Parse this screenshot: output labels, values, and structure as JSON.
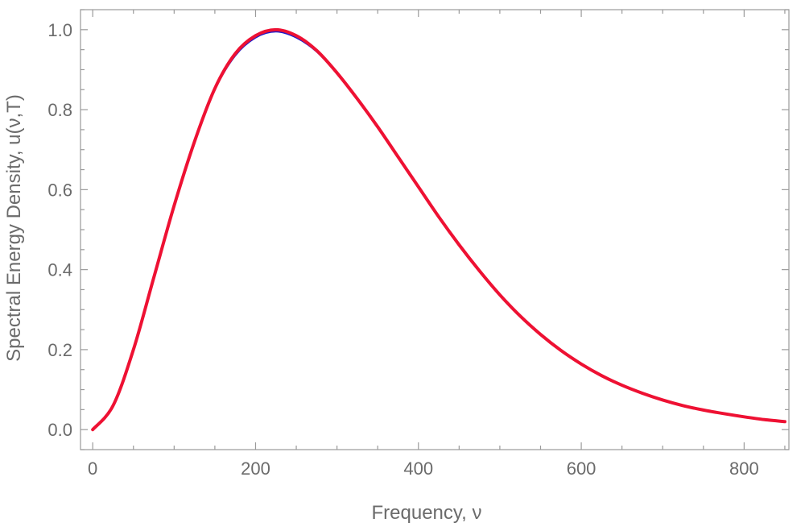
{
  "chart_data": {
    "type": "line",
    "xlabel": "Frequency, ν",
    "ylabel": "Spectral Energy Density, u(ν,T)",
    "xlim": [
      -15,
      855
    ],
    "ylim": [
      -0.05,
      1.05
    ],
    "x_ticks": [
      0,
      200,
      400,
      600,
      800
    ],
    "x_tick_labels": [
      "0",
      "200",
      "400",
      "600",
      "800"
    ],
    "x_minor_step": 50,
    "y_ticks": [
      0.0,
      0.2,
      0.4,
      0.6,
      0.8,
      1.0
    ],
    "y_tick_labels": [
      "0.0",
      "0.2",
      "0.4",
      "0.6",
      "0.8",
      "1.0"
    ],
    "y_minor_step": 0.05,
    "grid": false,
    "x": [
      0,
      25,
      50,
      75,
      100,
      125,
      150,
      175,
      200,
      225,
      250,
      275,
      300,
      325,
      350,
      375,
      400,
      425,
      450,
      475,
      500,
      525,
      550,
      575,
      600,
      625,
      650,
      675,
      700,
      725,
      750,
      775,
      800,
      825,
      850
    ],
    "series": [
      {
        "color": "#1a1acc",
        "width": 2,
        "values": [
          0.0,
          0.06,
          0.2,
          0.38,
          0.56,
          0.72,
          0.85,
          0.935,
          0.98,
          0.995,
          0.98,
          0.945,
          0.89,
          0.825,
          0.755,
          0.68,
          0.605,
          0.53,
          0.46,
          0.395,
          0.335,
          0.283,
          0.237,
          0.197,
          0.163,
          0.134,
          0.11,
          0.09,
          0.073,
          0.059,
          0.048,
          0.039,
          0.031,
          0.025,
          0.02
        ]
      },
      {
        "color": "#ee1133",
        "width": 4,
        "values": [
          0.0,
          0.06,
          0.2,
          0.38,
          0.56,
          0.72,
          0.853,
          0.94,
          0.985,
          1.0,
          0.985,
          0.948,
          0.892,
          0.827,
          0.757,
          0.682,
          0.607,
          0.532,
          0.462,
          0.397,
          0.337,
          0.284,
          0.238,
          0.198,
          0.164,
          0.135,
          0.111,
          0.091,
          0.074,
          0.06,
          0.049,
          0.04,
          0.032,
          0.025,
          0.02
        ]
      }
    ]
  }
}
